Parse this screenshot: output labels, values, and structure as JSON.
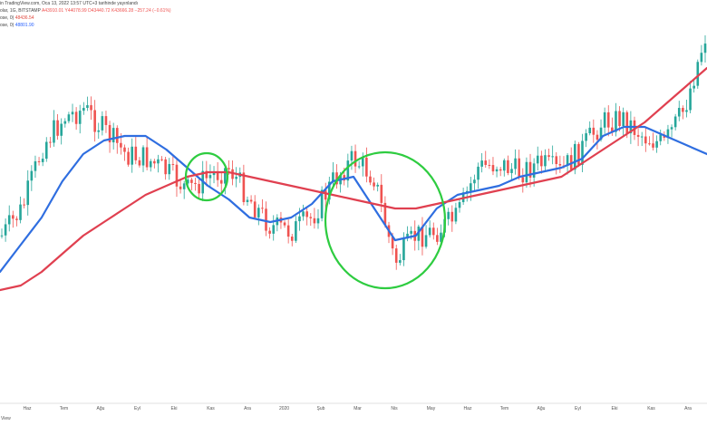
{
  "header": {
    "line1": "in TradingView.com, Oca 13, 2022 13:57 UTC+3 tarihinde yayınlandı",
    "line2_prefix": "olar, 1G, BITSTAMP",
    "open": "A43910.01",
    "high": "Y44078.99",
    "low": "D43440.72",
    "close": "K43666.28",
    "change": "−257.24 (−0.61%)",
    "ma1_label": "ose, 0)",
    "ma1_value": "48436.54",
    "ma2_label": "ose, 0)",
    "ma2_value": "48801.90"
  },
  "footer": {
    "view_label": "View"
  },
  "colors": {
    "ma_fast": "#2f6ee0",
    "ma_slow": "#e04050",
    "circles": "#2ecc40",
    "candle_up": "#26a69a",
    "candle_down": "#ef5350"
  },
  "chart_data": {
    "type": "candlestick",
    "x_tick_labels": [
      "Haz",
      "Tem",
      "Ağu",
      "Eyl",
      "Eki",
      "Kas",
      "Ara",
      "2020",
      "Şub",
      "Mar",
      "Nis",
      "May",
      "Haz",
      "Tem",
      "Ağu",
      "Eyl",
      "Eki",
      "Kas",
      "Ara"
    ],
    "series": [
      {
        "name": "",
        "kind": "line",
        "color_role": "ma_fast",
        "values": [
          300,
          270,
          240,
          200,
          170,
          155,
          150,
          150,
          165,
          185,
          205,
          220,
          240,
          245,
          240,
          225,
          200,
          195,
          230,
          265,
          260,
          230,
          215,
          210,
          205,
          195,
          190,
          185,
          175,
          150,
          140,
          140,
          150,
          160,
          170
        ]
      },
      {
        "name": "",
        "kind": "line",
        "color_role": "ma_slow",
        "values": [
          320,
          315,
          300,
          280,
          260,
          245,
          230,
          215,
          205,
          195,
          190,
          190,
          195,
          200,
          205,
          210,
          215,
          220,
          225,
          230,
          230,
          225,
          220,
          215,
          210,
          205,
          200,
          195,
          180,
          165,
          150,
          135,
          115,
          95,
          75
        ]
      }
    ],
    "candle_envelope": [
      260,
      230,
      160,
      130,
      120,
      145,
      170,
      175,
      190,
      210,
      195,
      185,
      220,
      250,
      255,
      240,
      200,
      175,
      195,
      290,
      260,
      255,
      240,
      185,
      180,
      190,
      180,
      190,
      165,
      135,
      130,
      150,
      160,
      120,
      40
    ],
    "highlight_circles": 2
  }
}
